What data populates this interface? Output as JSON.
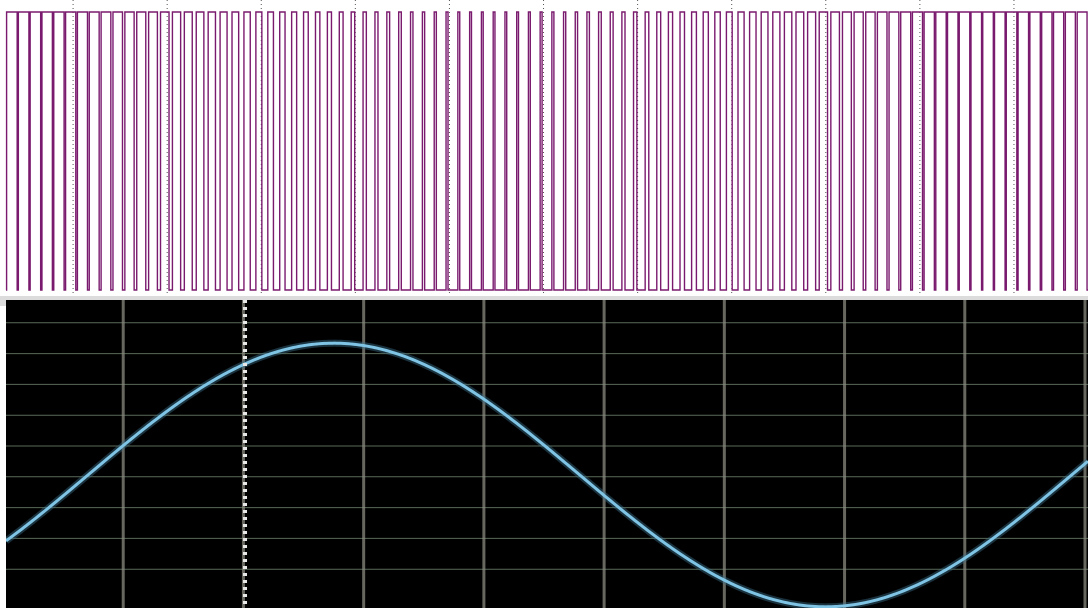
{
  "colors": {
    "pwm_trace": "#7a1a6e",
    "pwm_background": "#ffffff",
    "pwm_grid": "#555555",
    "scope_background": "#000000",
    "scope_grid_vertical": "#8a8a80",
    "scope_grid_horizontal": "#5a6a5a",
    "sine_trace": "#7fc4e4",
    "marker": "#e8e8e8"
  },
  "chart_data": [
    {
      "type": "line",
      "trace_kind": "pwm-square-wave",
      "title": "",
      "xlabel": "",
      "ylabel": "",
      "levels": [
        0,
        1
      ],
      "duty_cycle_range": [
        0.15,
        0.9
      ],
      "carrier_cycles": 92,
      "modulation_periods_shown": 1.1,
      "grid": true,
      "vertical_divisions": 11
    },
    {
      "type": "line",
      "trace_kind": "sine",
      "title": "",
      "xlabel": "",
      "ylabel": "",
      "periods_shown": 1.1,
      "phase_start_deg": -30,
      "ylim": [
        -1.1,
        1.1
      ],
      "grid": true,
      "vertical_divisions": 9,
      "horizontal_divisions": 10,
      "marker_position_fraction": 0.11
    }
  ]
}
